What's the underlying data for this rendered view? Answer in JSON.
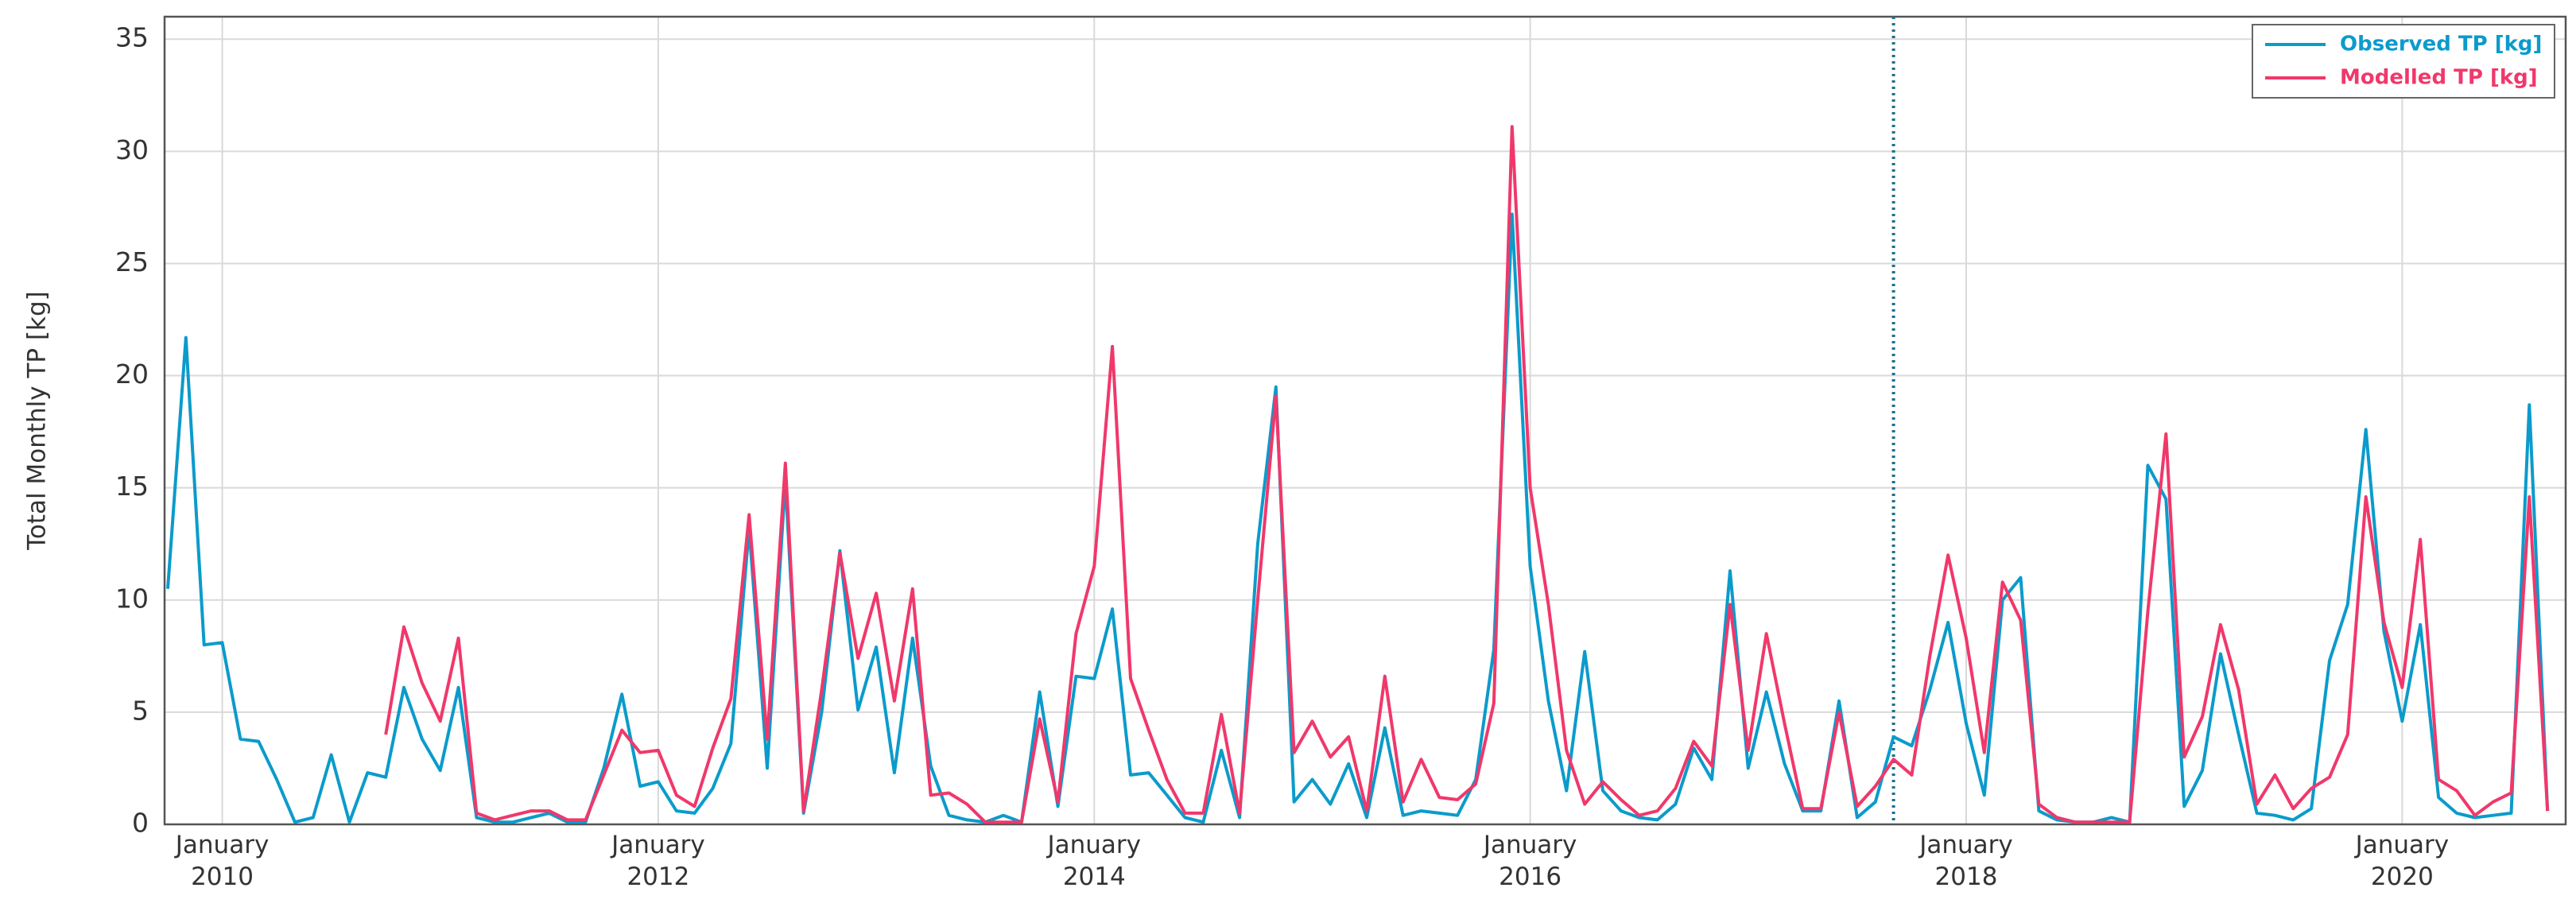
{
  "chart_data": {
    "type": "line",
    "ylabel": "Total Monthly TP [kg]",
    "x": [
      "2009-10",
      "2009-11",
      "2009-12",
      "2010-01",
      "2010-02",
      "2010-03",
      "2010-04",
      "2010-05",
      "2010-06",
      "2010-07",
      "2010-08",
      "2010-09",
      "2010-10",
      "2010-11",
      "2010-12",
      "2011-01",
      "2011-02",
      "2011-03",
      "2011-04",
      "2011-05",
      "2011-06",
      "2011-07",
      "2011-08",
      "2011-09",
      "2011-10",
      "2011-11",
      "2011-12",
      "2012-01",
      "2012-02",
      "2012-03",
      "2012-04",
      "2012-05",
      "2012-06",
      "2012-07",
      "2012-08",
      "2012-09",
      "2012-10",
      "2012-11",
      "2012-12",
      "2013-01",
      "2013-02",
      "2013-03",
      "2013-04",
      "2013-05",
      "2013-06",
      "2013-07",
      "2013-08",
      "2013-09",
      "2013-10",
      "2013-11",
      "2013-12",
      "2014-01",
      "2014-02",
      "2014-03",
      "2014-04",
      "2014-05",
      "2014-06",
      "2014-07",
      "2014-08",
      "2014-09",
      "2014-10",
      "2014-11",
      "2014-12",
      "2015-01",
      "2015-02",
      "2015-03",
      "2015-04",
      "2015-05",
      "2015-06",
      "2015-07",
      "2015-08",
      "2015-09",
      "2015-10",
      "2015-11",
      "2015-12",
      "2016-01",
      "2016-02",
      "2016-03",
      "2016-04",
      "2016-05",
      "2016-06",
      "2016-07",
      "2016-08",
      "2016-09",
      "2016-10",
      "2016-11",
      "2016-12",
      "2017-01",
      "2017-02",
      "2017-03",
      "2017-04",
      "2017-05",
      "2017-06",
      "2017-07",
      "2017-08",
      "2017-09",
      "2017-10",
      "2017-11",
      "2017-12",
      "2018-01",
      "2018-02",
      "2018-03",
      "2018-04",
      "2018-05",
      "2018-06",
      "2018-07",
      "2018-08",
      "2018-09",
      "2018-10",
      "2018-11",
      "2018-12",
      "2019-01",
      "2019-02",
      "2019-03",
      "2019-04",
      "2019-05",
      "2019-06",
      "2019-07",
      "2019-08",
      "2019-09",
      "2019-10",
      "2019-11",
      "2019-12",
      "2020-01",
      "2020-02",
      "2020-03",
      "2020-04",
      "2020-05",
      "2020-06",
      "2020-07",
      "2020-08",
      "2020-09"
    ],
    "series": [
      {
        "name": "Observed TP [kg]",
        "color": "#0b9bcb",
        "values": [
          10.5,
          21.7,
          8,
          8.1,
          3.8,
          3.7,
          2,
          0.1,
          0.3,
          3.1,
          0.1,
          2.3,
          2.1,
          6.1,
          3.8,
          2.4,
          6.1,
          0.3,
          0.1,
          0.1,
          0.3,
          0.5,
          0.1,
          0.1,
          2.5,
          5.8,
          1.7,
          1.9,
          0.6,
          0.5,
          1.6,
          3.6,
          13.2,
          2.5,
          15.3,
          0.5,
          5,
          12.2,
          5.1,
          7.9,
          2.3,
          8.3,
          2.6,
          0.4,
          0.2,
          0.1,
          0.4,
          0.1,
          5.9,
          0.8,
          6.6,
          6.5,
          9.6,
          2.2,
          2.3,
          1.3,
          0.3,
          0.1,
          3.3,
          0.3,
          12.5,
          19.5,
          1,
          2,
          0.9,
          2.7,
          0.3,
          4.3,
          0.4,
          0.6,
          0.5,
          0.4,
          2,
          7.8,
          27.2,
          11.5,
          5.5,
          1.5,
          7.7,
          1.5,
          0.6,
          0.3,
          0.2,
          0.9,
          3.4,
          2,
          11.3,
          2.5,
          5.9,
          2.7,
          0.6,
          0.6,
          5.5,
          0.3,
          1,
          3.9,
          3.5,
          6,
          9,
          4.5,
          1.3,
          10,
          11,
          0.6,
          0.2,
          0.1,
          0.1,
          0.3,
          0.1,
          16,
          14.5,
          0.8,
          2.4,
          7.6,
          4,
          0.5,
          0.4,
          0.2,
          0.7,
          7.3,
          9.8,
          17.6,
          8.6,
          4.6,
          8.9,
          1.2,
          0.5,
          0.3,
          0.4,
          0.5,
          18.7,
          0.6
        ]
      },
      {
        "name": "Modelled TP [kg]",
        "color": "#f0386b",
        "values": [
          null,
          null,
          null,
          null,
          null,
          null,
          null,
          null,
          null,
          null,
          null,
          null,
          4,
          8.8,
          6.3,
          4.6,
          8.3,
          0.5,
          0.2,
          0.4,
          0.6,
          0.6,
          0.2,
          0.2,
          2.2,
          4.2,
          3.2,
          3.3,
          1.3,
          0.8,
          3.4,
          5.6,
          13.8,
          3.8,
          16.1,
          0.6,
          6,
          12.1,
          7.4,
          10.3,
          5.5,
          10.5,
          1.3,
          1.4,
          0.9,
          0.1,
          0.1,
          0.1,
          4.7,
          1,
          8.5,
          11.5,
          21.3,
          6.5,
          4.2,
          2,
          0.5,
          0.5,
          4.9,
          0.5,
          10,
          19.1,
          3.2,
          4.6,
          3,
          3.9,
          0.6,
          6.6,
          1,
          2.9,
          1.2,
          1.1,
          1.8,
          5.4,
          31.1,
          15,
          9.8,
          3.3,
          0.9,
          1.9,
          1.1,
          0.4,
          0.6,
          1.6,
          3.7,
          2.6,
          9.8,
          3.3,
          8.5,
          4.5,
          0.7,
          0.7,
          5,
          0.8,
          1.7,
          2.9,
          2.2,
          7.5,
          12,
          8.3,
          3.2,
          10.8,
          9.1,
          0.9,
          0.3,
          0.1,
          0.1,
          0.1,
          0.1,
          9.5,
          17.4,
          3,
          4.8,
          8.9,
          6,
          0.9,
          2.2,
          0.7,
          1.6,
          2.1,
          4,
          14.6,
          9,
          6.1,
          12.7,
          2,
          1.5,
          0.4,
          1,
          1.4,
          14.6,
          0.6
        ]
      }
    ],
    "xlim": [
      "2009-10",
      "2020-10"
    ],
    "xticks": [
      {
        "value": "2010-01",
        "label": "January\n2010"
      },
      {
        "value": "2012-01",
        "label": "January\n2012"
      },
      {
        "value": "2014-01",
        "label": "January\n2014"
      },
      {
        "value": "2016-01",
        "label": "January\n2016"
      },
      {
        "value": "2018-01",
        "label": "January\n2018"
      },
      {
        "value": "2020-01",
        "label": "January\n2020"
      }
    ],
    "ylim": [
      0,
      36
    ],
    "yticks": [
      0,
      5,
      10,
      15,
      20,
      25,
      30,
      35
    ],
    "grid": true,
    "vline": {
      "x": "2017-09",
      "color": "#1d6f8a"
    },
    "legend": "upper right"
  }
}
